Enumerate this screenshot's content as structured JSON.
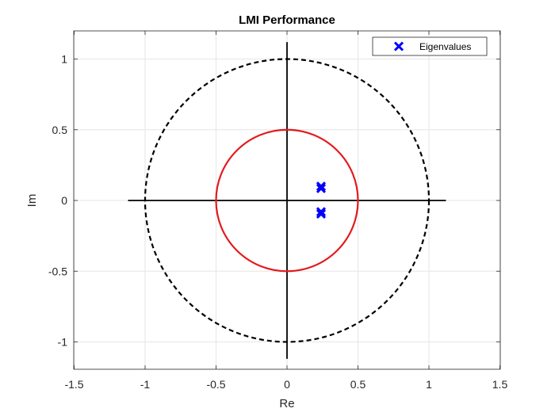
{
  "chart_data": {
    "type": "scatter",
    "title": "LMI Performance",
    "xlabel": "Re",
    "ylabel": "Im",
    "xlim": [
      -1.5,
      1.5
    ],
    "ylim": [
      -1.2,
      1.2
    ],
    "xticks": [
      -1.5,
      -1,
      -0.5,
      0,
      0.5,
      1,
      1.5
    ],
    "xtick_labels": [
      "-1.5",
      "-1",
      "-0.5",
      "0",
      "0.5",
      "1",
      "1.5"
    ],
    "yticks": [
      -1,
      -0.5,
      0,
      0.5,
      1
    ],
    "ytick_labels": [
      "-1",
      "-0.5",
      "0",
      "0.5",
      "1"
    ],
    "grid": true,
    "legend_position": "top-right",
    "series": [
      {
        "name": "Eigenvalues",
        "marker": "x",
        "color": "#0000ff",
        "points": [
          {
            "x": 0.24,
            "y": 0.1
          },
          {
            "x": 0.24,
            "y": 0.085
          },
          {
            "x": 0.24,
            "y": -0.08
          },
          {
            "x": 0.24,
            "y": -0.095
          }
        ]
      }
    ],
    "circles": [
      {
        "role": "unit-circle",
        "cx": 0,
        "cy": 0,
        "r": 1,
        "style": "dashed",
        "color": "#000000"
      },
      {
        "role": "region-circle",
        "cx": 0,
        "cy": 0,
        "r": 0.5,
        "style": "solid",
        "color": "#e31a1c"
      }
    ],
    "reference_axes": {
      "x_extent": [
        -1.12,
        1.12
      ],
      "y_extent": [
        -1.12,
        1.12
      ],
      "color": "#000000"
    }
  }
}
